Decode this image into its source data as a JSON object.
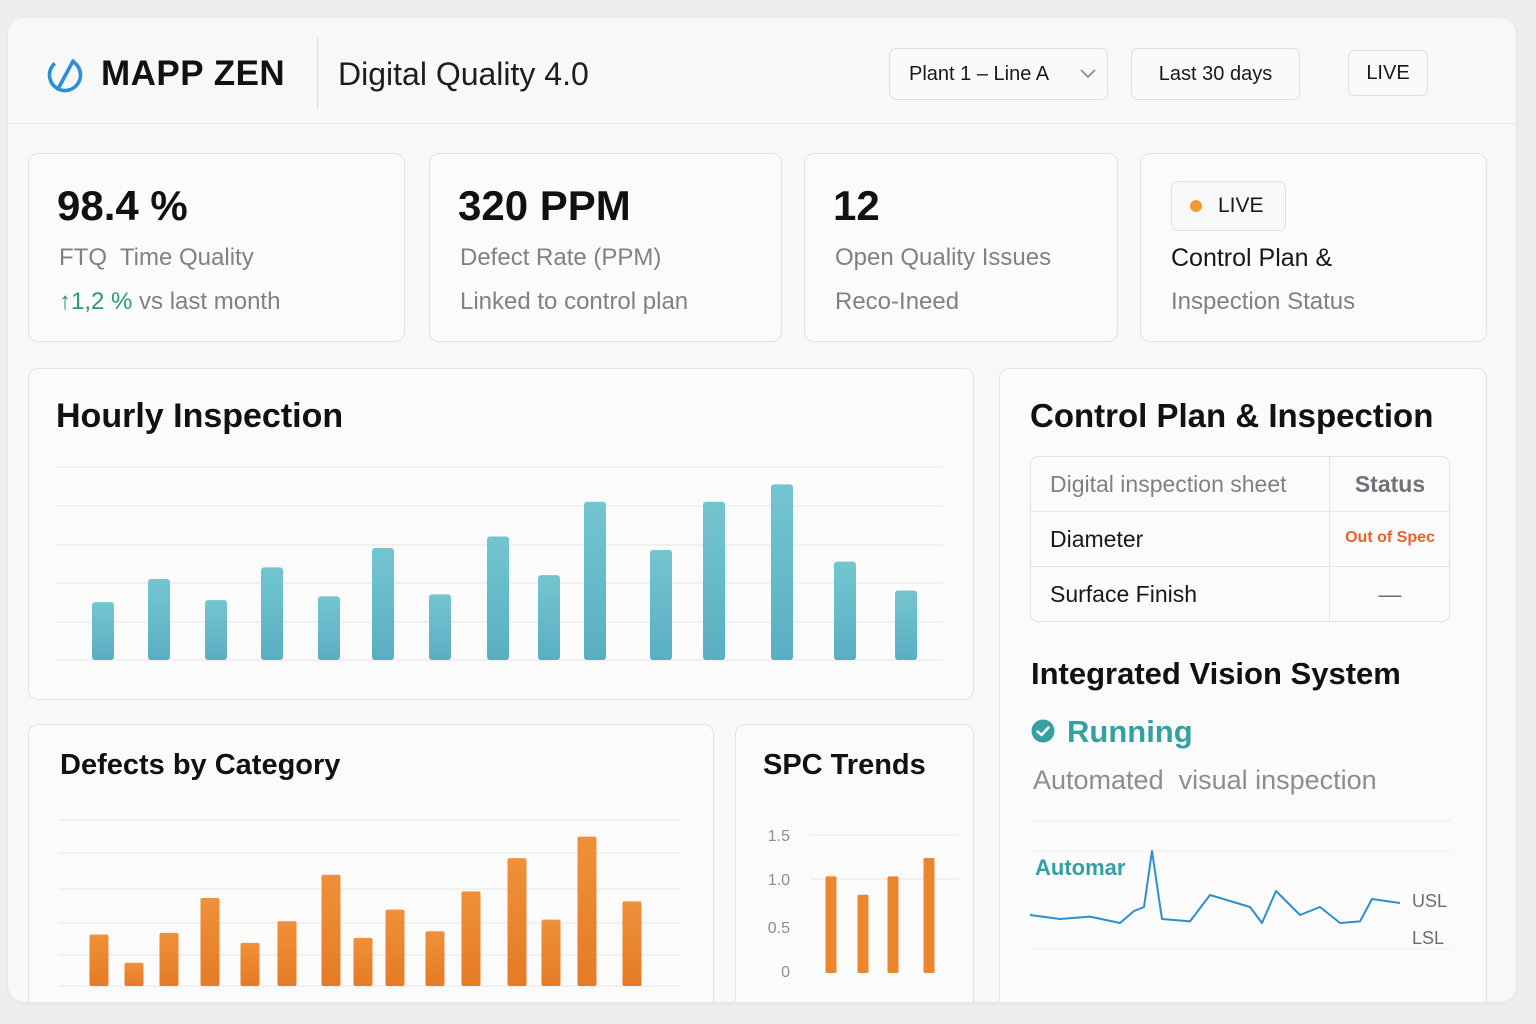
{
  "header": {
    "brand": "MAPP ZEN",
    "title": "Digital Quality 4.0",
    "plant_select": "Plant 1 – Line A",
    "range_button": "Last 30 days",
    "live_button": "LIVE"
  },
  "kpis": {
    "ftq": {
      "value": "98.4 %",
      "label": "FTQ  Time Quality",
      "delta": "↑1,2 %",
      "delta_suffix": " vs last month"
    },
    "defect": {
      "value": "320 PPM",
      "label": "Defect Rate (PPM)",
      "sub": "Linked to control plan"
    },
    "issues": {
      "value": "12",
      "label": "Open Quality Issues",
      "sub": "Reco-Ineed"
    },
    "control": {
      "live": "LIVE",
      "title": "Control Plan &",
      "sub": "Inspection Status"
    }
  },
  "hourly": {
    "title": "Hourly Inspection"
  },
  "defects": {
    "title": "Defects by Category"
  },
  "spc": {
    "title": "SPC Trends"
  },
  "control_plan": {
    "title": "Control Plan & Inspection",
    "header": {
      "item": "Digital inspection sheet",
      "status": "Status"
    },
    "rows": [
      {
        "item": "Diameter",
        "status": "Out of Spec"
      },
      {
        "item": "Surface Finish",
        "status": "—"
      }
    ]
  },
  "vision": {
    "title": "Integrated Vision System",
    "status": "Running",
    "description": "Automated  visual inspection",
    "trend_label": "Automar",
    "usl": "USL",
    "lsl": "LSL"
  },
  "colors": {
    "teal": "#69bcc9",
    "orange": "#ee8a32",
    "green": "#2a9a72",
    "alert": "#e8622c"
  },
  "chart_data": [
    {
      "type": "bar",
      "id": "hourly-inspection",
      "title": "Hourly Inspection",
      "values": [
        30,
        42,
        31,
        48,
        33,
        58,
        34,
        64,
        44,
        82,
        57,
        82,
        91,
        51,
        36
      ],
      "ylim": [
        0,
        100
      ],
      "grid": true
    },
    {
      "type": "bar",
      "id": "defects-by-category",
      "title": "Defects by Category",
      "values": [
        31,
        14,
        32,
        53,
        26,
        39,
        67,
        29,
        46,
        33,
        57,
        77,
        40,
        90,
        51
      ],
      "ylim": [
        0,
        100
      ],
      "grid": true
    },
    {
      "type": "bar",
      "id": "spc-trends",
      "title": "SPC Trends",
      "yticks": [
        "1.5",
        "1.0",
        "0.5",
        "0"
      ],
      "values": [
        1.05,
        0.85,
        1.05,
        1.25
      ],
      "ylim": [
        0,
        1.5
      ]
    },
    {
      "type": "line",
      "id": "vision-trend",
      "values": [
        0.2,
        0.15,
        0.18,
        0.1,
        0.25,
        0.3,
        1.0,
        0.15,
        0.12,
        0.45,
        0.3,
        0.1,
        0.5,
        0.2,
        0.3,
        0.1,
        0.12,
        0.4,
        0.35
      ]
    }
  ]
}
